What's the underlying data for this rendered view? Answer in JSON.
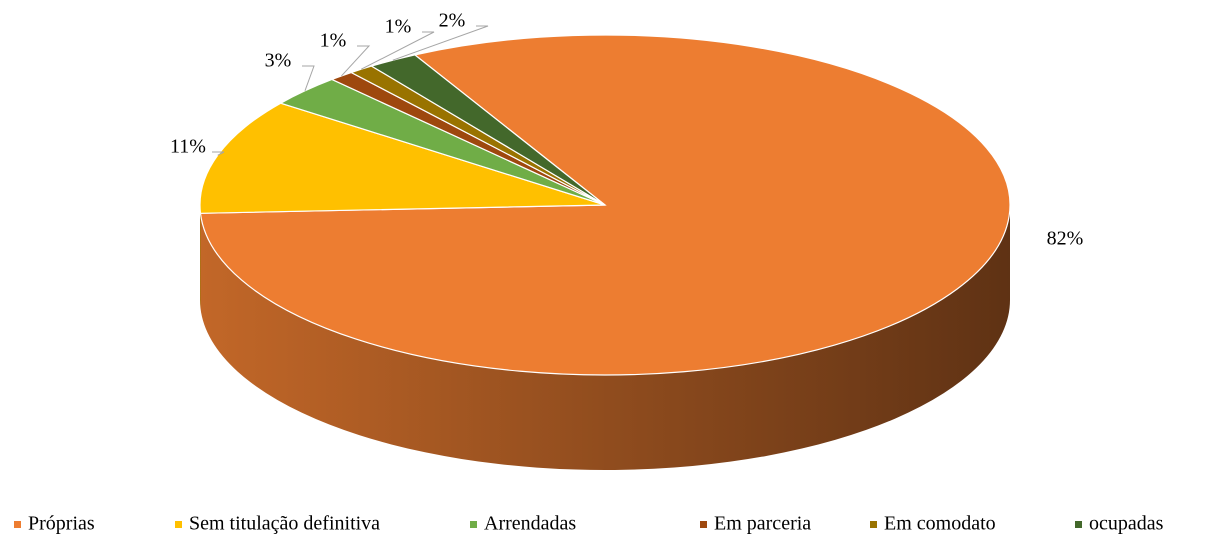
{
  "chart_data": {
    "type": "pie",
    "categories": [
      "Próprias",
      "Sem titulação definitiva",
      "Arrendadas",
      "Em parceria",
      "Em comodato",
      "ocupadas"
    ],
    "values": [
      82,
      11,
      3,
      1,
      1,
      2
    ],
    "value_labels": [
      "82%",
      "11%",
      "3%",
      "1%",
      "1%",
      "2%"
    ],
    "colors": [
      "#ED7D31",
      "#FFC000",
      "#70AD47",
      "#9E480E",
      "#997300",
      "#43682B"
    ],
    "legend": "bottom"
  }
}
